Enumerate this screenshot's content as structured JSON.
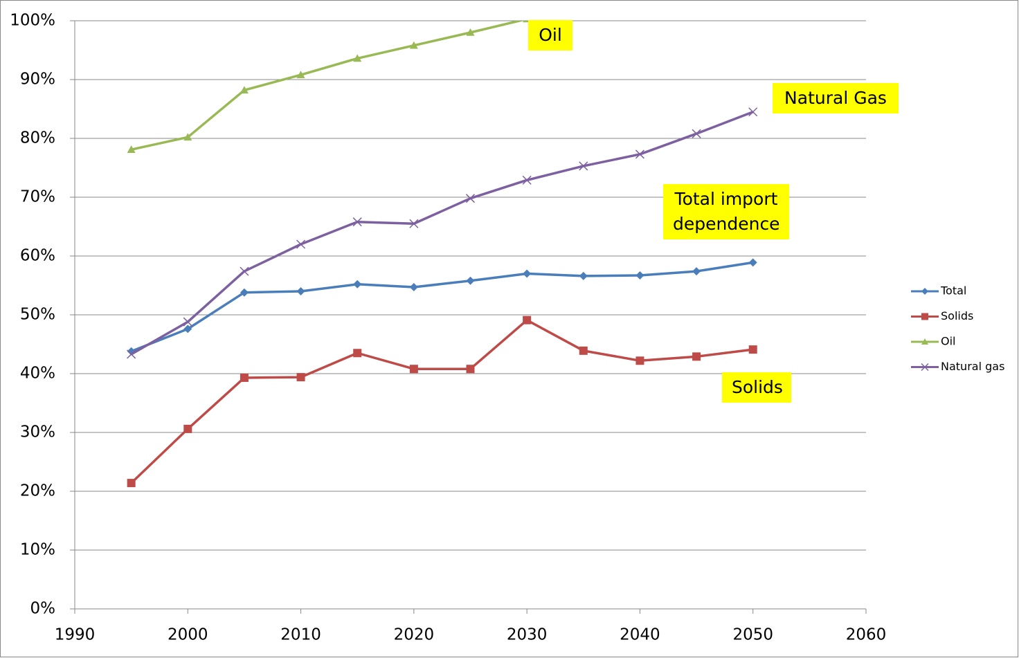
{
  "chart_data": {
    "type": "line",
    "x": [
      1995,
      2000,
      2005,
      2010,
      2015,
      2020,
      2025,
      2030,
      2035,
      2040,
      2045,
      2050
    ],
    "series": [
      {
        "name": "Total",
        "color": "#4a7ebb",
        "marker": "diamond",
        "values": [
          43.8,
          47.6,
          53.8,
          54.0,
          55.2,
          54.7,
          55.8,
          57.0,
          56.6,
          56.7,
          57.4,
          58.9
        ]
      },
      {
        "name": "Solids",
        "color": "#be4b48",
        "marker": "square",
        "values": [
          21.4,
          30.6,
          39.3,
          39.4,
          43.5,
          40.8,
          40.8,
          49.1,
          43.9,
          42.2,
          42.9,
          44.1
        ]
      },
      {
        "name": "Oil",
        "color": "#98b954",
        "marker": "triangle",
        "values": [
          78.1,
          80.2,
          88.2,
          90.8,
          93.6,
          95.8,
          98.0,
          100.3,
          null,
          null,
          null,
          null
        ]
      },
      {
        "name": "Natural gas",
        "color": "#7d60a0",
        "marker": "x",
        "values": [
          43.3,
          48.8,
          57.4,
          62.0,
          65.8,
          65.5,
          69.8,
          72.9,
          75.3,
          77.3,
          80.8,
          84.5
        ]
      }
    ],
    "annotations": [
      "Oil",
      "Natural Gas",
      "Total import dependence",
      "Solids"
    ],
    "xlim": [
      1990,
      2060
    ],
    "xticks": [
      1990,
      2000,
      2010,
      2020,
      2030,
      2040,
      2050,
      2060
    ],
    "ylim": [
      0,
      100
    ],
    "yticks": [
      {
        "value": 0,
        "label": "0%"
      },
      {
        "value": 10,
        "label": "10%"
      },
      {
        "value": 20,
        "label": "20%"
      },
      {
        "value": 30,
        "label": "30%"
      },
      {
        "value": 40,
        "label": "40%"
      },
      {
        "value": 50,
        "label": "50%"
      },
      {
        "value": 60,
        "label": "60%"
      },
      {
        "value": 70,
        "label": "70%"
      },
      {
        "value": 80,
        "label": "80%"
      },
      {
        "value": 90,
        "label": "90%"
      },
      {
        "value": 100,
        "label": "100%"
      }
    ],
    "grid": true,
    "legend": "right"
  }
}
